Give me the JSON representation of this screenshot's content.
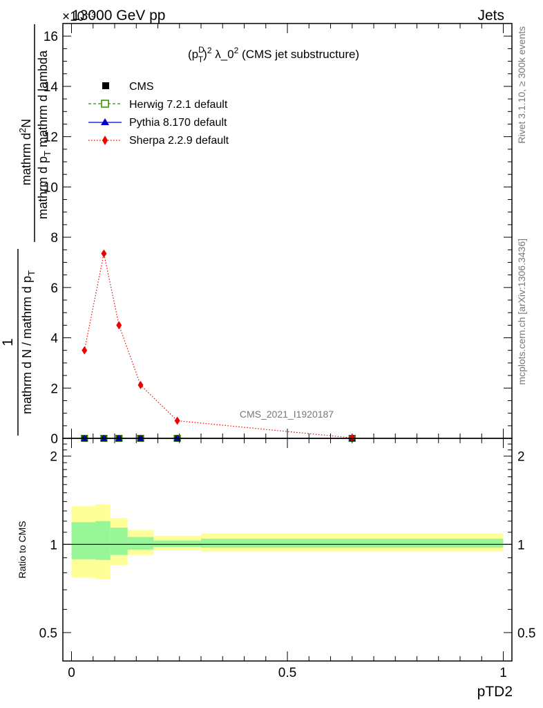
{
  "header": {
    "energy_label": "13000 GeV pp",
    "process_label": "Jets",
    "exponent_label": "×10⁻³",
    "watermark": "CMS_2021_I1920187",
    "side_label_rivet": "Rivet 3.1.10, ≥ 300k events",
    "side_label_mcplots": "mcplots.cern.ch [arXiv:1306.3436]"
  },
  "colors": {
    "cms": "#000000",
    "herwig": "#2e8b00",
    "pythia": "#0000cc",
    "sherpa": "#ee0000",
    "band_inner": "#98f598",
    "band_outer": "#ffff9a"
  },
  "chart_data": [
    {
      "type": "line",
      "title": "(p_T^D)^2 λ_0^2 (CMS jet substructure)",
      "title_parts": {
        "a": "(p",
        "sup1": "D",
        "sub1": "T",
        "b": ")",
        "sup2": "2",
        "c": " λ_0",
        "sup3": "2",
        "d": " (CMS jet substructure)"
      },
      "xlabel": "pTD2",
      "ylabel_numerator": "mathrm d²N",
      "ylabel_numerator_parts": {
        "a": "mathrm d",
        "sup": "2",
        "b": "N"
      },
      "ylabel_denominator": "mathrm d p_T mathrm d lambda",
      "ylabel_denominator_parts": {
        "a": "mathrm d p",
        "sub": "T",
        "b": " mathrm d lambda"
      },
      "ylabel_prefix_numerator": "1",
      "ylabel_prefix_denominator": "mathrm d N / mathrm d p_T",
      "ylabel_prefix_denominator_parts": {
        "a": "mathrm d N / mathrm d p",
        "sub": "T"
      },
      "y_scale_exponent": -3,
      "xlim": [
        -0.02,
        1.02
      ],
      "ylim": [
        0,
        16.5
      ],
      "y_ticks": [
        0,
        2,
        4,
        6,
        8,
        10,
        12,
        14,
        16
      ],
      "y_tick_labels": [
        "0",
        "2",
        "4",
        "6",
        "8",
        "10",
        "12",
        "14",
        "16"
      ],
      "legend": [
        "CMS",
        "Herwig 7.2.1 default",
        "Pythia 8.170 default",
        "Sherpa 2.2.9 default"
      ],
      "legend_position": "top-left",
      "series": [
        {
          "name": "CMS",
          "marker": "square",
          "x": [
            0.03,
            0.075,
            0.11,
            0.16,
            0.245,
            0.65
          ],
          "y": [
            0.0,
            0.0,
            0.0,
            0.0,
            0.0,
            0.0
          ]
        },
        {
          "name": "Herwig 7.2.1 default",
          "marker": "open-square",
          "line": "dashed",
          "x": [
            0.03,
            0.075,
            0.11,
            0.16,
            0.245,
            0.65
          ],
          "y": [
            0.0,
            0.0,
            0.0,
            0.0,
            0.0,
            0.0
          ]
        },
        {
          "name": "Pythia 8.170 default",
          "marker": "triangle",
          "line": "solid",
          "x": [
            0.03,
            0.075,
            0.11,
            0.16,
            0.245,
            0.65
          ],
          "y": [
            0.0,
            0.0,
            0.0,
            0.0,
            0.0,
            0.0
          ]
        },
        {
          "name": "Sherpa 2.2.9 default",
          "marker": "diamond",
          "line": "dotted",
          "x": [
            0.03,
            0.075,
            0.11,
            0.16,
            0.245,
            0.65
          ],
          "y": [
            3.5,
            7.35,
            4.5,
            2.12,
            0.7,
            0.02
          ]
        }
      ]
    },
    {
      "type": "area",
      "ylabel": "Ratio to CMS",
      "xlabel": "pTD2",
      "xlim": [
        -0.02,
        1.02
      ],
      "ylim": [
        0.4,
        2.3
      ],
      "x_ticks": [
        0,
        0.5,
        1
      ],
      "x_tick_labels": [
        "0",
        "0.5",
        "1"
      ],
      "y_ticks": [
        0.5,
        1,
        2
      ],
      "y_tick_labels": [
        "0.5",
        "1",
        "2"
      ],
      "reference_line": 1,
      "bins": [
        {
          "x_low": 0.0,
          "x_high": 0.055,
          "inner": [
            0.89,
            1.19
          ],
          "outer": [
            0.77,
            1.35
          ]
        },
        {
          "x_low": 0.055,
          "x_high": 0.09,
          "inner": [
            0.885,
            1.2
          ],
          "outer": [
            0.76,
            1.37
          ]
        },
        {
          "x_low": 0.09,
          "x_high": 0.13,
          "inner": [
            0.92,
            1.14
          ],
          "outer": [
            0.85,
            1.23
          ]
        },
        {
          "x_low": 0.13,
          "x_high": 0.19,
          "inner": [
            0.96,
            1.06
          ],
          "outer": [
            0.92,
            1.12
          ]
        },
        {
          "x_low": 0.19,
          "x_high": 0.3,
          "inner": [
            0.98,
            1.03
          ],
          "outer": [
            0.955,
            1.07
          ]
        },
        {
          "x_low": 0.3,
          "x_high": 1.0,
          "inner": [
            0.975,
            1.045
          ],
          "outer": [
            0.945,
            1.09
          ]
        }
      ]
    }
  ]
}
